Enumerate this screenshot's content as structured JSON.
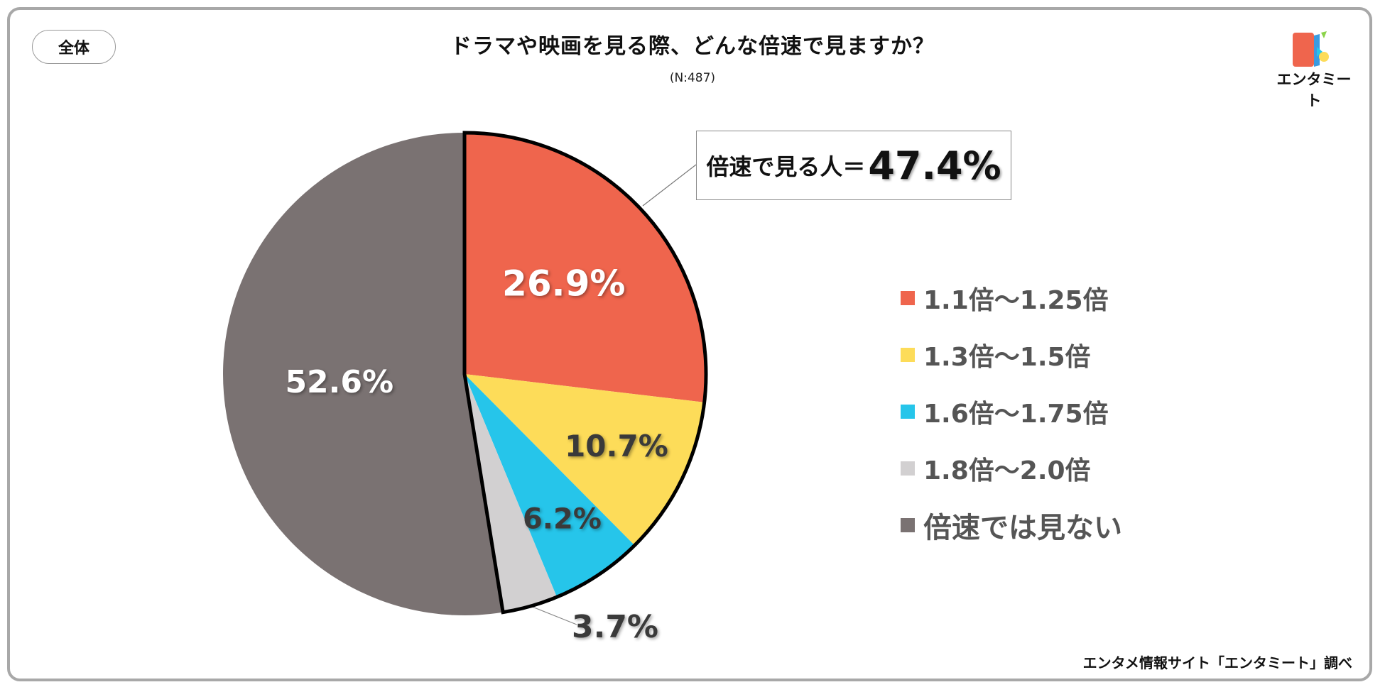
{
  "segment_label": "全体",
  "logo": {
    "wordmark": "エンタミート"
  },
  "source_note": "エンタメ情報サイト「エンタミート」調べ",
  "callout": {
    "text": "倍速で見る人＝",
    "value": "47.4%"
  },
  "colors": {
    "s1": "#ef654d",
    "s2": "#fddc59",
    "s3": "#26c5ea",
    "s4": "#d2d0d1",
    "s5": "#7a7272"
  },
  "chart_data": {
    "type": "pie",
    "title": "ドラマや映画を見る際、どんな倍速で見ますか？",
    "subtitle": "(N:487)",
    "legend_position": "right",
    "slices": [
      {
        "label": "1.1倍～1.25倍",
        "value": 26.9,
        "value_label": "26.9%",
        "color": "#ef654d"
      },
      {
        "label": "1.3倍～1.5倍",
        "value": 10.7,
        "value_label": "10.7%",
        "color": "#fddc59"
      },
      {
        "label": "1.6倍～1.75倍",
        "value": 6.2,
        "value_label": "6.2%",
        "color": "#26c5ea"
      },
      {
        "label": "1.8倍～2.0倍",
        "value": 3.7,
        "value_label": "3.7%",
        "color": "#d2d0d1"
      },
      {
        "label": "倍速では見ない",
        "value": 52.6,
        "value_label": "52.6%",
        "color": "#7a7272"
      }
    ]
  }
}
